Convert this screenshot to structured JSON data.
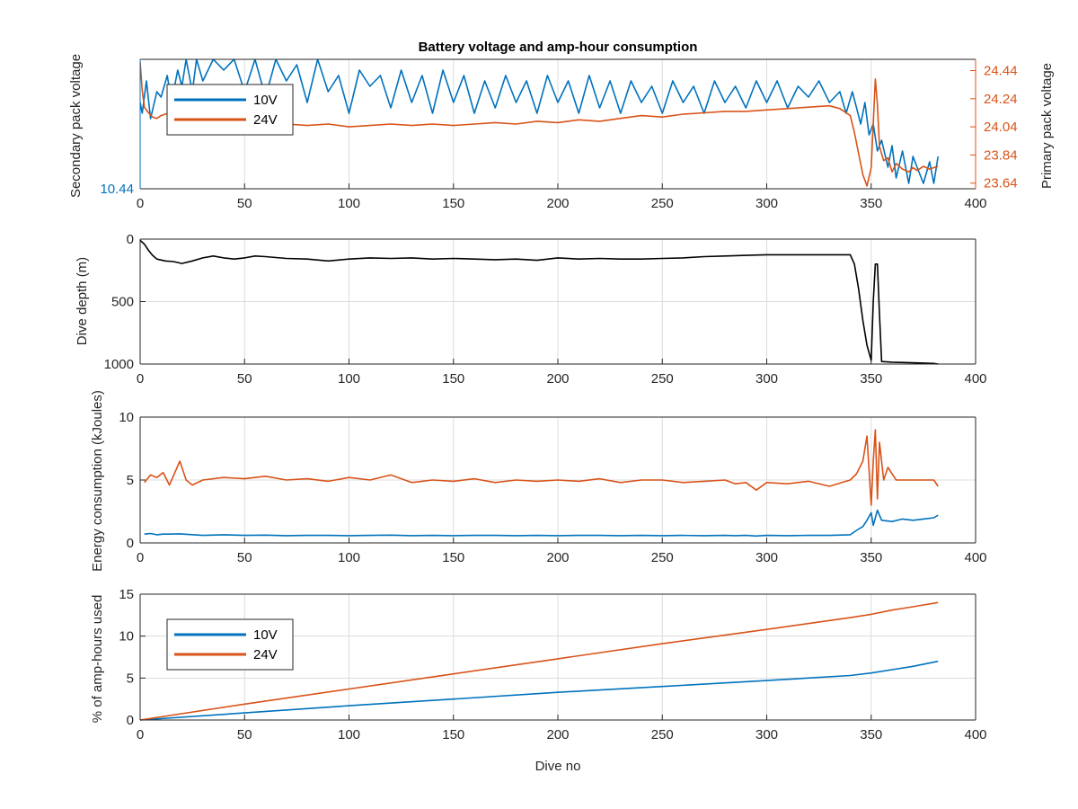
{
  "colors": {
    "blue": "#0072bd",
    "orange": "#d95319",
    "black": "#000000",
    "axis": "#262626",
    "grid": "#dcdcdc"
  },
  "chart_data": [
    {
      "type": "line",
      "title": "Battery voltage and amp-hour consumption",
      "xlabel": "",
      "xlim": [
        0,
        400
      ],
      "xticks": [
        "0",
        "50",
        "100",
        "150",
        "200",
        "250",
        "300",
        "350",
        "400"
      ],
      "grid": true,
      "legend": {
        "placement": "top-left",
        "entries": [
          "10V",
          "24V"
        ]
      },
      "left_axis": {
        "label": "Secondary pack voltage",
        "ticks": [
          "10.44"
        ],
        "ylim": [
          10.44,
          10.56
        ]
      },
      "right_axis": {
        "label": "Primary pack voltage",
        "ticks": [
          "24.44",
          "24.24",
          "24.04",
          "23.84",
          "23.64"
        ],
        "ylim": [
          23.6,
          24.52
        ]
      },
      "series": [
        {
          "name": "10V",
          "axis": "left",
          "x": [
            0,
            1,
            3,
            5,
            8,
            10,
            13,
            15,
            18,
            20,
            22,
            25,
            27,
            30,
            35,
            40,
            45,
            50,
            55,
            60,
            65,
            70,
            75,
            80,
            85,
            90,
            95,
            100,
            105,
            110,
            115,
            120,
            125,
            130,
            135,
            140,
            145,
            150,
            155,
            160,
            165,
            170,
            175,
            180,
            185,
            190,
            195,
            200,
            205,
            210,
            215,
            220,
            225,
            230,
            235,
            240,
            245,
            250,
            255,
            260,
            265,
            270,
            275,
            280,
            285,
            290,
            295,
            300,
            305,
            310,
            315,
            320,
            325,
            330,
            335,
            338,
            341,
            343,
            345,
            347,
            349,
            351,
            353,
            355,
            358,
            360,
            362,
            365,
            368,
            370,
            372,
            375,
            378,
            380,
            382
          ],
          "values": [
            10.52,
            10.51,
            10.54,
            10.505,
            10.53,
            10.525,
            10.545,
            10.52,
            10.55,
            10.535,
            10.56,
            10.53,
            10.56,
            10.54,
            10.56,
            10.55,
            10.56,
            10.53,
            10.56,
            10.525,
            10.56,
            10.54,
            10.555,
            10.52,
            10.56,
            10.53,
            10.545,
            10.51,
            10.55,
            10.535,
            10.545,
            10.515,
            10.55,
            10.52,
            10.545,
            10.51,
            10.55,
            10.52,
            10.545,
            10.51,
            10.54,
            10.515,
            10.545,
            10.52,
            10.54,
            10.51,
            10.545,
            10.52,
            10.54,
            10.51,
            10.545,
            10.515,
            10.54,
            10.51,
            10.54,
            10.52,
            10.535,
            10.51,
            10.54,
            10.52,
            10.535,
            10.51,
            10.54,
            10.52,
            10.535,
            10.515,
            10.54,
            10.52,
            10.54,
            10.515,
            10.535,
            10.525,
            10.54,
            10.52,
            10.53,
            10.51,
            10.53,
            10.515,
            10.5,
            10.52,
            10.49,
            10.5,
            10.475,
            10.485,
            10.46,
            10.48,
            10.45,
            10.475,
            10.445,
            10.47,
            10.46,
            10.445,
            10.465,
            10.445,
            10.47
          ]
        },
        {
          "name": "24V",
          "axis": "right",
          "x": [
            0,
            1,
            2,
            4,
            6,
            8,
            10,
            12,
            15,
            18,
            20,
            25,
            30,
            35,
            40,
            50,
            60,
            70,
            80,
            90,
            100,
            110,
            120,
            130,
            140,
            150,
            160,
            170,
            180,
            190,
            200,
            210,
            220,
            230,
            240,
            250,
            260,
            270,
            280,
            290,
            300,
            310,
            320,
            330,
            335,
            340,
            342,
            344,
            346,
            348,
            350,
            352,
            353,
            354,
            356,
            358,
            360,
            362,
            365,
            368,
            370,
            372,
            375,
            378,
            380,
            382
          ],
          "values": [
            24.5,
            24.3,
            24.18,
            24.14,
            24.11,
            24.1,
            24.12,
            24.13,
            24.14,
            24.13,
            24.12,
            24.1,
            24.09,
            24.08,
            24.07,
            24.06,
            24.05,
            24.06,
            24.05,
            24.06,
            24.04,
            24.05,
            24.06,
            24.05,
            24.06,
            24.05,
            24.06,
            24.07,
            24.06,
            24.08,
            24.07,
            24.09,
            24.08,
            24.1,
            24.12,
            24.11,
            24.13,
            24.14,
            24.15,
            24.15,
            24.16,
            24.17,
            24.18,
            24.19,
            24.17,
            24.12,
            24.0,
            23.85,
            23.7,
            23.62,
            23.75,
            24.38,
            24.2,
            23.9,
            23.8,
            23.82,
            23.72,
            23.78,
            23.74,
            23.72,
            23.75,
            23.73,
            23.76,
            23.74,
            23.75,
            23.76
          ]
        }
      ]
    },
    {
      "type": "line",
      "title": "",
      "xlabel": "",
      "ylabel": "Dive depth (m)",
      "xlim": [
        0,
        400
      ],
      "ylim": [
        0,
        1000
      ],
      "y_reversed": true,
      "xticks": [
        "0",
        "50",
        "100",
        "150",
        "200",
        "250",
        "300",
        "350",
        "400"
      ],
      "yticks": [
        "0",
        "500",
        "1000"
      ],
      "grid": true,
      "series": [
        {
          "x": [
            0,
            2,
            4,
            6,
            8,
            12,
            16,
            20,
            25,
            30,
            35,
            40,
            45,
            50,
            55,
            60,
            70,
            80,
            90,
            100,
            110,
            120,
            130,
            140,
            150,
            160,
            170,
            180,
            190,
            200,
            210,
            220,
            230,
            240,
            250,
            260,
            270,
            280,
            290,
            300,
            310,
            320,
            330,
            340,
            342,
            344,
            346,
            348,
            350,
            351,
            352,
            353,
            354,
            355,
            360,
            370,
            380,
            382
          ],
          "values": [
            10,
            40,
            90,
            130,
            160,
            175,
            180,
            195,
            175,
            150,
            135,
            150,
            160,
            150,
            135,
            140,
            155,
            160,
            175,
            160,
            150,
            155,
            150,
            160,
            155,
            160,
            165,
            160,
            170,
            150,
            160,
            155,
            160,
            160,
            155,
            150,
            140,
            135,
            130,
            125,
            125,
            125,
            125,
            125,
            200,
            400,
            650,
            850,
            970,
            500,
            200,
            200,
            600,
            980,
            985,
            990,
            995,
            1000
          ]
        }
      ]
    },
    {
      "type": "line",
      "title": "",
      "xlabel": "",
      "ylabel": "Energy consumption (kJoules)",
      "xlim": [
        0,
        400
      ],
      "ylim": [
        0,
        10
      ],
      "xticks": [
        "0",
        "50",
        "100",
        "150",
        "200",
        "250",
        "300",
        "350",
        "400"
      ],
      "yticks": [
        "0",
        "5",
        "10"
      ],
      "grid": true,
      "series": [
        {
          "name": "10V",
          "x": [
            2,
            5,
            8,
            11,
            14,
            19,
            30,
            40,
            50,
            60,
            70,
            80,
            90,
            100,
            110,
            120,
            130,
            140,
            150,
            160,
            170,
            180,
            190,
            200,
            210,
            220,
            230,
            240,
            250,
            260,
            270,
            280,
            285,
            290,
            295,
            300,
            310,
            320,
            330,
            340,
            343,
            346,
            348,
            350,
            351,
            353,
            355,
            360,
            365,
            370,
            375,
            380,
            382
          ],
          "values": [
            0.7,
            0.75,
            0.65,
            0.7,
            0.7,
            0.72,
            0.6,
            0.65,
            0.6,
            0.62,
            0.58,
            0.6,
            0.6,
            0.58,
            0.6,
            0.62,
            0.58,
            0.6,
            0.58,
            0.6,
            0.6,
            0.58,
            0.6,
            0.58,
            0.6,
            0.6,
            0.58,
            0.6,
            0.58,
            0.6,
            0.58,
            0.6,
            0.58,
            0.6,
            0.55,
            0.6,
            0.58,
            0.6,
            0.6,
            0.65,
            1.0,
            1.3,
            1.8,
            2.4,
            1.4,
            2.6,
            1.8,
            1.7,
            1.9,
            1.8,
            1.9,
            2.0,
            2.2
          ]
        },
        {
          "name": "24V",
          "x": [
            2,
            5,
            8,
            11,
            14,
            19,
            22,
            25,
            30,
            40,
            50,
            60,
            70,
            80,
            90,
            100,
            110,
            120,
            130,
            140,
            150,
            160,
            170,
            180,
            190,
            200,
            210,
            220,
            230,
            240,
            250,
            260,
            270,
            280,
            285,
            290,
            295,
            300,
            310,
            320,
            330,
            340,
            343,
            346,
            348,
            350,
            351,
            352,
            353,
            354,
            356,
            358,
            362,
            370,
            380,
            382
          ],
          "values": [
            4.8,
            5.4,
            5.2,
            5.6,
            4.6,
            6.5,
            5.0,
            4.6,
            5.0,
            5.2,
            5.1,
            5.3,
            5.0,
            5.1,
            4.9,
            5.2,
            5.0,
            5.4,
            4.8,
            5.0,
            4.9,
            5.1,
            4.8,
            5.0,
            4.9,
            5.0,
            4.9,
            5.1,
            4.8,
            5.0,
            5.0,
            4.8,
            4.9,
            5.0,
            4.7,
            4.8,
            4.2,
            4.8,
            4.7,
            4.9,
            4.5,
            5.0,
            5.5,
            6.5,
            8.5,
            3.0,
            6.5,
            9.0,
            3.5,
            8.0,
            5.0,
            6.0,
            5.0,
            5.0,
            5.0,
            4.5
          ]
        }
      ]
    },
    {
      "type": "line",
      "title": "",
      "xlabel": "Dive no",
      "ylabel": "% of amp-hours used",
      "xlim": [
        0,
        400
      ],
      "ylim": [
        0,
        15
      ],
      "xticks": [
        "0",
        "50",
        "100",
        "150",
        "200",
        "250",
        "300",
        "350",
        "400"
      ],
      "yticks": [
        "0",
        "5",
        "10",
        "15"
      ],
      "grid": true,
      "legend": {
        "placement": "top-left",
        "entries": [
          "10V",
          "24V"
        ]
      },
      "series": [
        {
          "name": "10V",
          "x": [
            0,
            50,
            100,
            150,
            200,
            250,
            300,
            340,
            350,
            360,
            370,
            382
          ],
          "values": [
            0,
            0.85,
            1.7,
            2.5,
            3.3,
            4.0,
            4.7,
            5.3,
            5.6,
            6.0,
            6.4,
            7.0
          ]
        },
        {
          "name": "24V",
          "x": [
            0,
            50,
            100,
            150,
            200,
            250,
            300,
            340,
            350,
            360,
            370,
            382
          ],
          "values": [
            0,
            1.9,
            3.7,
            5.5,
            7.3,
            9.1,
            10.8,
            12.2,
            12.6,
            13.1,
            13.5,
            14.0
          ]
        }
      ]
    }
  ]
}
